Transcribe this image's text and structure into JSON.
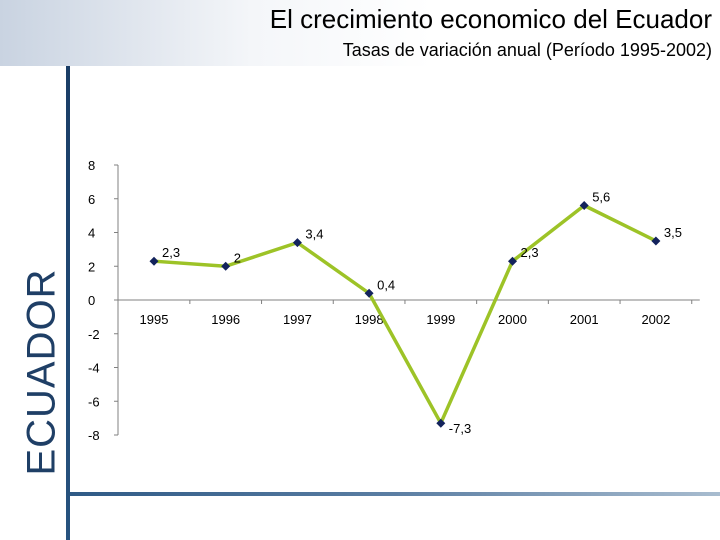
{
  "slide": {
    "title": "El crecimiento economico del Ecuador",
    "subtitle": "Tasas de variación anual (Período 1995-2002)",
    "side_label": "ECUADOR"
  },
  "colors": {
    "line": "#9dc327",
    "marker": "#13235c",
    "accent": "#1f3f66"
  },
  "chart_data": {
    "type": "line",
    "title": "",
    "xlabel": "",
    "ylabel": "",
    "ylim": [
      -8,
      8
    ],
    "yticks": [
      8,
      6,
      4,
      2,
      0,
      -2,
      -4,
      -6,
      -8
    ],
    "categories": [
      "1995",
      "1996",
      "1997",
      "1998",
      "1999",
      "2000",
      "2001",
      "2002"
    ],
    "series": [
      {
        "values": [
          2.3,
          2,
          3.4,
          0.4,
          -7.3,
          2.3,
          5.6,
          3.5
        ],
        "labels": [
          "2,3",
          "2",
          "3,4",
          "0,4",
          "-7,3",
          "2,3",
          "5,6",
          "3,5"
        ]
      }
    ],
    "grid": false,
    "legend": "none"
  }
}
